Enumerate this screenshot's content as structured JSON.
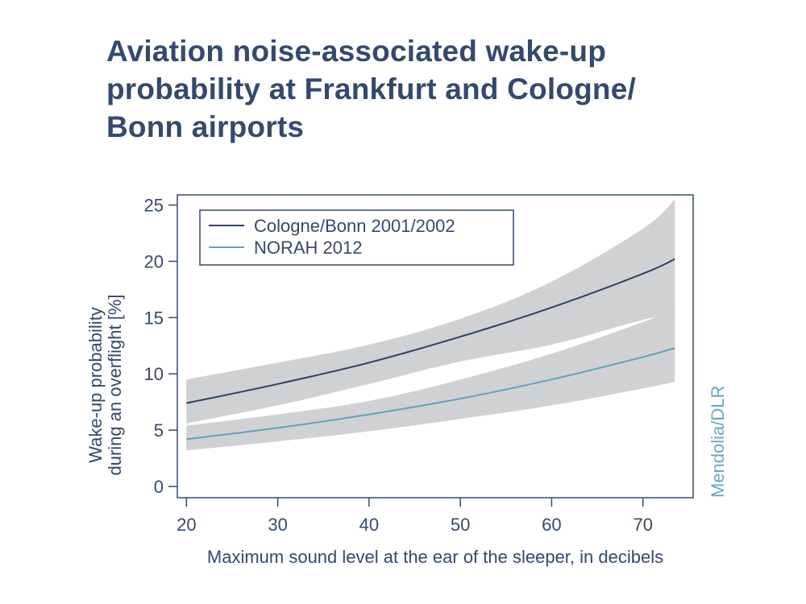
{
  "title_lines": [
    "Aviation noise-associated wake-up",
    "probability at Frankfurt and Cologne/",
    "Bonn airports"
  ],
  "credit": "Mendolia/DLR",
  "colors": {
    "text": "#34496d",
    "cologne": "#2f4166",
    "norah": "#5fa3bd",
    "band": "#d0d1d3",
    "credit": "#6aa7c0"
  },
  "chart_data": {
    "type": "line",
    "xlabel": "Maximum sound level at the ear of the sleeper, in decibels",
    "ylabel_lines": [
      "Wake-up probability",
      "during an overflight [%]"
    ],
    "xlim": [
      19,
      75.5
    ],
    "ylim": [
      -1,
      25.9
    ],
    "xticks": [
      20,
      30,
      40,
      50,
      60,
      70
    ],
    "yticks": [
      0,
      5,
      10,
      15,
      20,
      25
    ],
    "legend_position": "top-left",
    "series": [
      {
        "name": "Cologne/Bonn 2001/2002",
        "color": "#2f4166",
        "x": [
          20,
          30,
          40,
          50,
          60,
          70,
          73.5
        ],
        "y": [
          7.4,
          9.1,
          11.0,
          13.3,
          15.9,
          18.9,
          20.2
        ],
        "upper": [
          9.5,
          11.0,
          12.6,
          14.9,
          18.2,
          22.9,
          25.5
        ],
        "lower": [
          5.6,
          7.2,
          9.1,
          11.1,
          12.6,
          14.8,
          15.2
        ]
      },
      {
        "name": "NORAH 2012",
        "color": "#5fa3bd",
        "x": [
          20,
          30,
          40,
          50,
          60,
          70,
          73.5
        ],
        "y": [
          4.2,
          5.2,
          6.4,
          7.8,
          9.5,
          11.5,
          12.3
        ],
        "upper": [
          5.4,
          6.4,
          7.6,
          9.5,
          11.8,
          14.6,
          15.8
        ],
        "lower": [
          3.2,
          4.0,
          4.9,
          6.0,
          7.2,
          8.7,
          9.3
        ]
      }
    ]
  }
}
